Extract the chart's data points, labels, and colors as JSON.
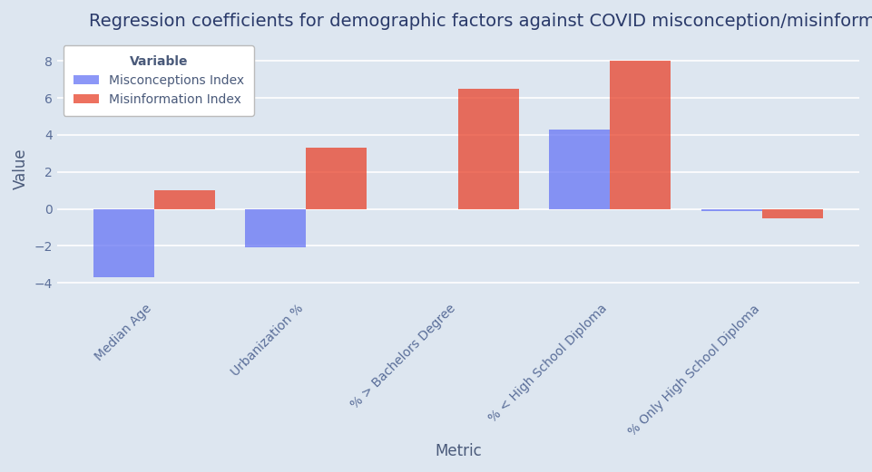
{
  "title": "Regression coefficients for demographic factors against COVID misconception/misinformation",
  "xlabel": "Metric",
  "ylabel": "Value",
  "legend_title": "Variable",
  "categories": [
    "Median Age",
    "Urbanization %",
    "% > Bachelors Degree",
    "% < High School Diploma",
    "% Only High School Diploma"
  ],
  "misconceptions": [
    -3.7,
    -2.1,
    0.0,
    4.3,
    -0.1
  ],
  "misinformation": [
    1.0,
    3.3,
    6.5,
    8.0,
    -0.5
  ],
  "misconceptions_color": "#6675f5",
  "misinformation_color": "#e8422a",
  "figure_background_color": "#dde6f0",
  "plot_background_color": "#dde6f0",
  "ylim": [
    -4.8,
    9.2
  ],
  "yticks": [
    -4,
    -2,
    0,
    2,
    4,
    6,
    8
  ],
  "bar_width": 0.4,
  "title_fontsize": 14,
  "axis_label_fontsize": 12,
  "tick_fontsize": 10,
  "tick_color": "#5a6e99",
  "label_color": "#4a5a7a",
  "title_color": "#2a3a6a",
  "legend_label_misconceptions": "Misconceptions Index",
  "legend_label_misinformation": "Misinformation Index",
  "bar_alpha": 0.75
}
